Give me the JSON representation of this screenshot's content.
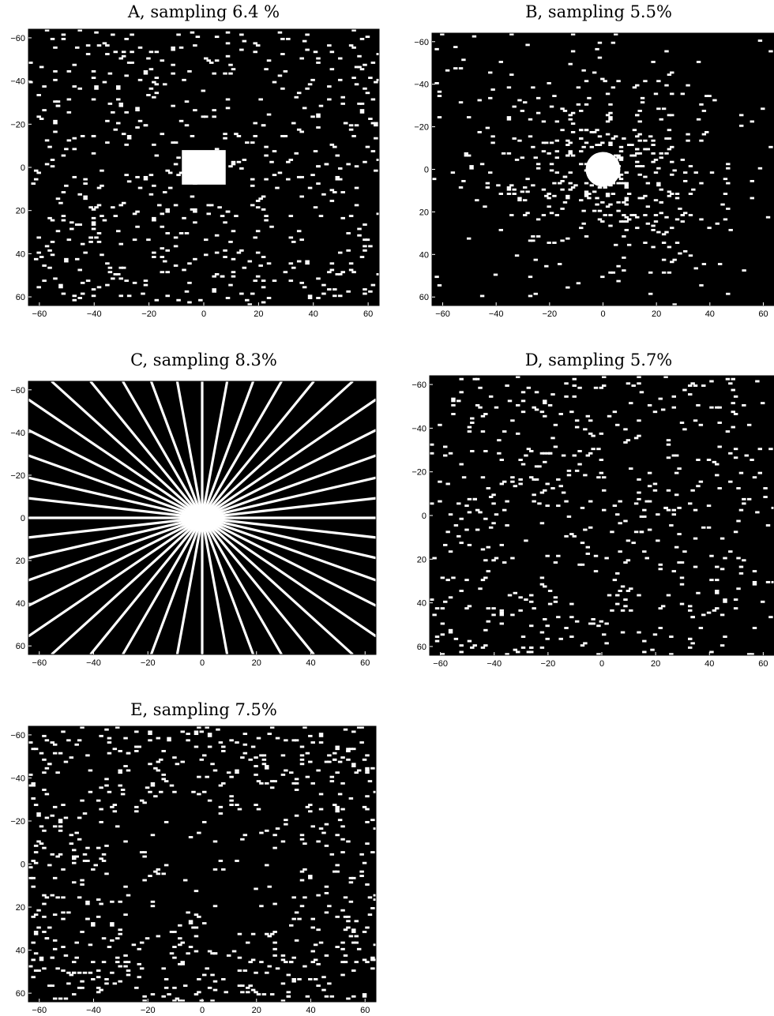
{
  "chart_data": [
    {
      "panel": "A",
      "type": "heatmap",
      "title": "A, sampling 6.4 %",
      "pattern": "uniform random sampling with fully sampled central block",
      "sampling_percent": 6.4,
      "center_block": {
        "x": [
          -8,
          8
        ],
        "y": [
          -8,
          8
        ]
      },
      "xlim": [
        -64,
        64
      ],
      "ylim": [
        -64,
        64
      ],
      "y_inverted": true,
      "xticks": [
        -60,
        -40,
        -20,
        0,
        20,
        40,
        60
      ],
      "yticks": [
        -60,
        -40,
        -20,
        0,
        20,
        40,
        60
      ],
      "colors": {
        "background": "#000000",
        "sampled": "#ffffff"
      }
    },
    {
      "panel": "B",
      "type": "heatmap",
      "title": "B, sampling 5.5%",
      "pattern": "variable density random sampling with fully sampled central disk",
      "sampling_percent": 5.5,
      "center_disk_radius": 5,
      "xlim": [
        -64,
        64
      ],
      "ylim": [
        -64,
        64
      ],
      "y_inverted": true,
      "xticks": [
        -60,
        -40,
        -20,
        0,
        20,
        40,
        60
      ],
      "yticks": [
        -60,
        -40,
        -20,
        0,
        20,
        40,
        60
      ],
      "colors": {
        "background": "#000000",
        "sampled": "#ffffff"
      }
    },
    {
      "panel": "C",
      "type": "heatmap",
      "title": "C, sampling 8.3%",
      "pattern": "radial lines",
      "sampling_percent": 8.3,
      "radial_line_count": 22,
      "xlim": [
        -64,
        64
      ],
      "ylim": [
        -64,
        64
      ],
      "y_inverted": true,
      "xticks": [
        -60,
        -40,
        -20,
        0,
        20,
        40,
        60
      ],
      "yticks": [
        -60,
        -40,
        -20,
        0,
        20,
        40,
        60
      ],
      "colors": {
        "background": "#000000",
        "sampled": "#ffffff"
      }
    },
    {
      "panel": "D",
      "type": "heatmap",
      "title": "D, sampling 5.7%",
      "pattern": "uniform random sampling",
      "sampling_percent": 5.7,
      "xlim": [
        -64,
        64
      ],
      "ylim": [
        -64,
        64
      ],
      "y_inverted": true,
      "xticks": [
        -60,
        -40,
        -20,
        0,
        20,
        40,
        60
      ],
      "yticks": [
        -60,
        -40,
        -20,
        0,
        20,
        40,
        60
      ],
      "colors": {
        "background": "#000000",
        "sampled": "#ffffff"
      }
    },
    {
      "panel": "E",
      "type": "heatmap",
      "title": "E, sampling 7.5%",
      "pattern": "random sampling denser toward outer edges",
      "sampling_percent": 7.5,
      "xlim": [
        -64,
        64
      ],
      "ylim": [
        -64,
        64
      ],
      "y_inverted": true,
      "xticks": [
        -60,
        -40,
        -20,
        0,
        20,
        40,
        60
      ],
      "yticks": [
        -60,
        -40,
        -20,
        0,
        20,
        40,
        60
      ],
      "colors": {
        "background": "#000000",
        "sampled": "#ffffff"
      }
    }
  ]
}
